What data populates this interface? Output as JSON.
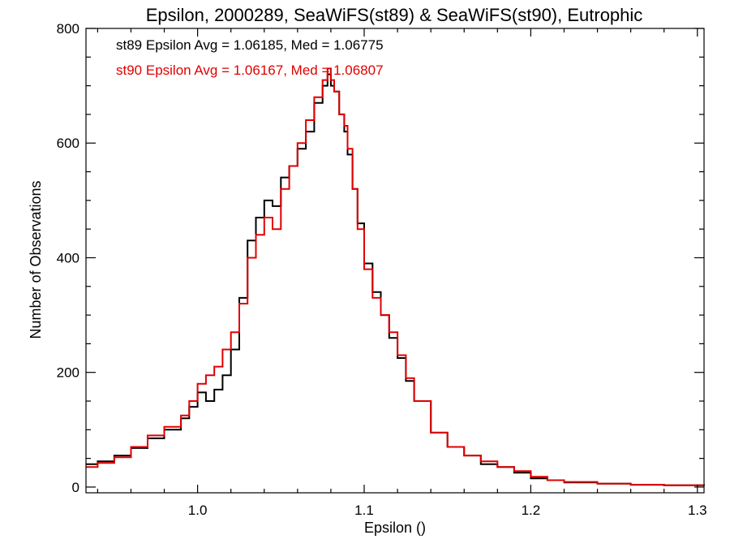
{
  "chart_data": {
    "type": "line",
    "step": true,
    "title": "Epsilon, 2000289, SeaWiFS(st89) & SeaWiFS(st90), Eutrophic",
    "xlabel": "Epsilon ()",
    "ylabel": "Number of Observations",
    "xlim": [
      0.933,
      1.304
    ],
    "ylim": [
      -10,
      800
    ],
    "x_ticks": [
      1.0,
      1.1,
      1.2,
      1.3
    ],
    "x_tick_labels": [
      "1.0",
      "1.1",
      "1.2",
      "1.3"
    ],
    "y_ticks": [
      0,
      200,
      400,
      600,
      800
    ],
    "y_tick_labels": [
      "0",
      "200",
      "400",
      "600",
      "800"
    ],
    "grid": false,
    "legend_position": "top-left",
    "series": [
      {
        "name": "st89",
        "color": "#000000",
        "annotation": "st89 Epsilon Avg = 1.06185, Med = 1.06775",
        "x": [
          0.933,
          0.94,
          0.95,
          0.96,
          0.97,
          0.98,
          0.99,
          0.995,
          1.0,
          1.005,
          1.01,
          1.015,
          1.02,
          1.025,
          1.03,
          1.035,
          1.04,
          1.045,
          1.05,
          1.055,
          1.06,
          1.065,
          1.07,
          1.075,
          1.078,
          1.08,
          1.082,
          1.085,
          1.088,
          1.09,
          1.093,
          1.096,
          1.1,
          1.105,
          1.11,
          1.115,
          1.12,
          1.125,
          1.13,
          1.14,
          1.15,
          1.16,
          1.17,
          1.18,
          1.19,
          1.2,
          1.21,
          1.22,
          1.24,
          1.26,
          1.28,
          1.304
        ],
        "values": [
          40,
          45,
          55,
          68,
          85,
          100,
          120,
          140,
          165,
          150,
          170,
          195,
          240,
          330,
          430,
          470,
          500,
          490,
          540,
          560,
          590,
          620,
          670,
          700,
          720,
          700,
          690,
          650,
          620,
          580,
          520,
          460,
          390,
          340,
          300,
          260,
          225,
          185,
          150,
          95,
          70,
          55,
          40,
          35,
          25,
          15,
          12,
          8,
          6,
          4,
          3,
          2
        ]
      },
      {
        "name": "st90",
        "color": "#e00000",
        "annotation": "st90 Epsilon Avg = 1.06167, Med = 1.06807",
        "x": [
          0.933,
          0.94,
          0.95,
          0.96,
          0.97,
          0.98,
          0.99,
          0.995,
          1.0,
          1.005,
          1.01,
          1.015,
          1.02,
          1.025,
          1.03,
          1.035,
          1.04,
          1.045,
          1.05,
          1.055,
          1.06,
          1.065,
          1.07,
          1.075,
          1.078,
          1.08,
          1.082,
          1.085,
          1.088,
          1.09,
          1.093,
          1.096,
          1.1,
          1.105,
          1.11,
          1.115,
          1.12,
          1.125,
          1.13,
          1.14,
          1.15,
          1.16,
          1.17,
          1.18,
          1.19,
          1.2,
          1.21,
          1.22,
          1.24,
          1.26,
          1.28,
          1.304
        ],
        "values": [
          35,
          42,
          52,
          70,
          90,
          105,
          125,
          150,
          180,
          195,
          210,
          240,
          270,
          320,
          400,
          440,
          470,
          450,
          520,
          560,
          600,
          640,
          680,
          710,
          730,
          710,
          690,
          650,
          630,
          590,
          520,
          450,
          380,
          330,
          300,
          270,
          230,
          190,
          150,
          95,
          70,
          55,
          45,
          35,
          28,
          18,
          12,
          9,
          6,
          4,
          3,
          2
        ]
      }
    ]
  }
}
